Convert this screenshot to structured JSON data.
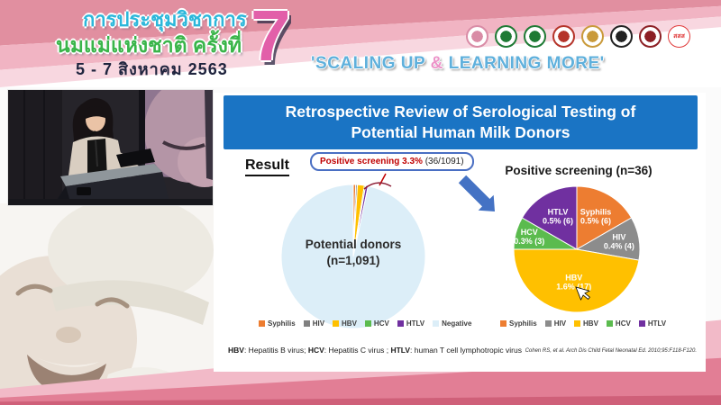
{
  "banner": {
    "thai_title_line1": "การประชุมวิชาการ",
    "thai_title_line2": "นมแม่แห่งชาติ ครั้งที่",
    "date_line": "5 - 7 สิงหาคม 2563",
    "edition_number": "7",
    "slogan_prefix": "'SCALING UP ",
    "slogan_amp": "&",
    "slogan_suffix": " LEARNING MORE'",
    "logos": [
      {
        "name": "mother-child-foundation-logo",
        "color": "#d98ca6",
        "text": ""
      },
      {
        "name": "green-health-ministry-logo",
        "color": "#1e7a34",
        "text": ""
      },
      {
        "name": "green-medical-council-logo",
        "color": "#1e7a34",
        "text": ""
      },
      {
        "name": "red-gold-institute-logo",
        "color": "#b5342a",
        "text": ""
      },
      {
        "name": "royal-crest-logo",
        "color": "#c99a3a",
        "text": ""
      },
      {
        "name": "black-university-seal-logo",
        "color": "#222222",
        "text": ""
      },
      {
        "name": "dark-red-crest-logo",
        "color": "#8c1f24",
        "text": ""
      },
      {
        "name": "thaihealth-logo",
        "color": "#e03a3a",
        "text": "สสส"
      }
    ]
  },
  "slide": {
    "title": "Retrospective Review of Serological Testing of Potential Human Milk Donors",
    "result_label": "Result",
    "callout": {
      "highlight": "Positive screening 3.3%",
      "detail": " (36/1091)"
    },
    "footnote": {
      "seg1_bold": "HBV",
      "seg1": ": Hepatitis B virus; ",
      "seg2_bold": "HCV",
      "seg2": ": Hepatitis C virus ; ",
      "seg3_bold": "HTLV",
      "seg3": ": human T cell lymphotropic virus"
    },
    "citation": "Cohen RS, et al. Arch Dis Child Fetal Neonatal Ed. 2010;95:F118-F120."
  },
  "chart_data": [
    {
      "type": "pie",
      "title": "Potential donors (n=1,091)",
      "center_label_lines": [
        "Potential donors",
        "(n=1,091)"
      ],
      "categories": [
        "Syphilis",
        "HIV",
        "HBV",
        "HCV",
        "HTLV",
        "Negative"
      ],
      "values": [
        6,
        4,
        17,
        3,
        6,
        1055
      ],
      "colors": [
        "#ED7D31",
        "#808080",
        "#FFC000",
        "#5BBB4E",
        "#7030A0",
        "#DCEEF8"
      ],
      "total": 1091,
      "legend_position": "bottom",
      "labels_shown": false
    },
    {
      "type": "pie",
      "title": "Positive screening (n=36)",
      "categories": [
        "Syphilis",
        "HIV",
        "HBV",
        "HCV",
        "HTLV"
      ],
      "values": [
        6,
        4,
        17,
        3,
        6
      ],
      "slice_labels": [
        "Syphilis\n0.5% (6)",
        "HIV\n0.4% (4)",
        "HBV\n1.6% (17)",
        "HCV\n0.3% (3)",
        "HTLV\n0.5% (6)"
      ],
      "label_r": [
        0.6,
        0.68,
        0.52,
        0.78,
        0.6
      ],
      "colors": [
        "#ED7D31",
        "#8C8C8C",
        "#FFC000",
        "#5BBB4E",
        "#7030A0"
      ],
      "total": 36,
      "legend_position": "bottom",
      "labels_shown": true
    }
  ],
  "colors": {
    "slide_title_bar": "#1a74c4",
    "callout_highlight": "#c00000",
    "arrow_blue": "#4472c4",
    "banner_pink_dark": "#e18fa0",
    "banner_pink_mid": "#f1b4c3",
    "bottom_band_pink": "#e27e95",
    "slogan_blue": "#5fb0dc",
    "edition_pink": "#e25fa9"
  }
}
